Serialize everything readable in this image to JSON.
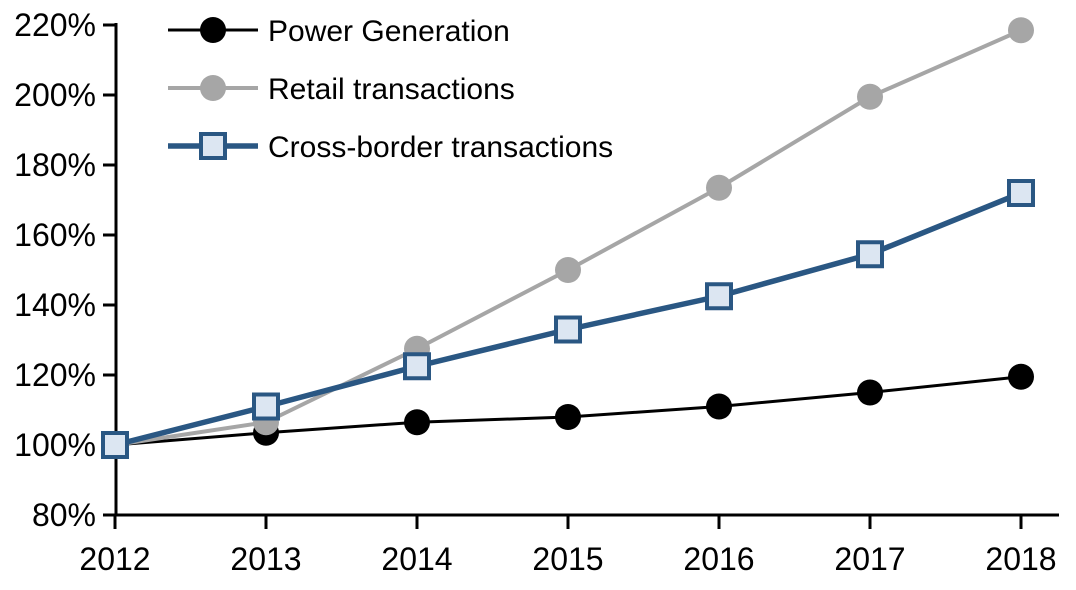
{
  "chart_data": {
    "type": "line",
    "title": "",
    "xlabel": "",
    "ylabel": "",
    "categories": [
      "2012",
      "2013",
      "2014",
      "2015",
      "2016",
      "2017",
      "2018"
    ],
    "series": [
      {
        "name": "Power Generation",
        "color": "#000000",
        "marker": "circle",
        "marker_fill": "#000000",
        "line_width": 3,
        "values": [
          100,
          103.5,
          106.5,
          108,
          111,
          115,
          119.5
        ]
      },
      {
        "name": "Retail transactions",
        "color": "#A6A6A6",
        "marker": "circle",
        "marker_fill": "#A6A6A6",
        "line_width": 4,
        "values": [
          100,
          106.5,
          127.5,
          150,
          173.5,
          199.5,
          218.5
        ]
      },
      {
        "name": "Cross-border transactions",
        "color": "#2A5783",
        "marker": "square",
        "marker_fill": "#DCE6F2",
        "line_width": 5.5,
        "values": [
          100,
          111,
          122.5,
          133,
          142.5,
          154.5,
          172
        ]
      }
    ],
    "ylim": [
      80,
      220
    ],
    "ytick_step": 20,
    "ytick_labels": [
      "80%",
      "100%",
      "120%",
      "140%",
      "160%",
      "180%",
      "200%",
      "220%"
    ],
    "grid": false,
    "legend_position": "top-left",
    "axis_color": "#000000",
    "background_color": "#FFFFFF"
  }
}
